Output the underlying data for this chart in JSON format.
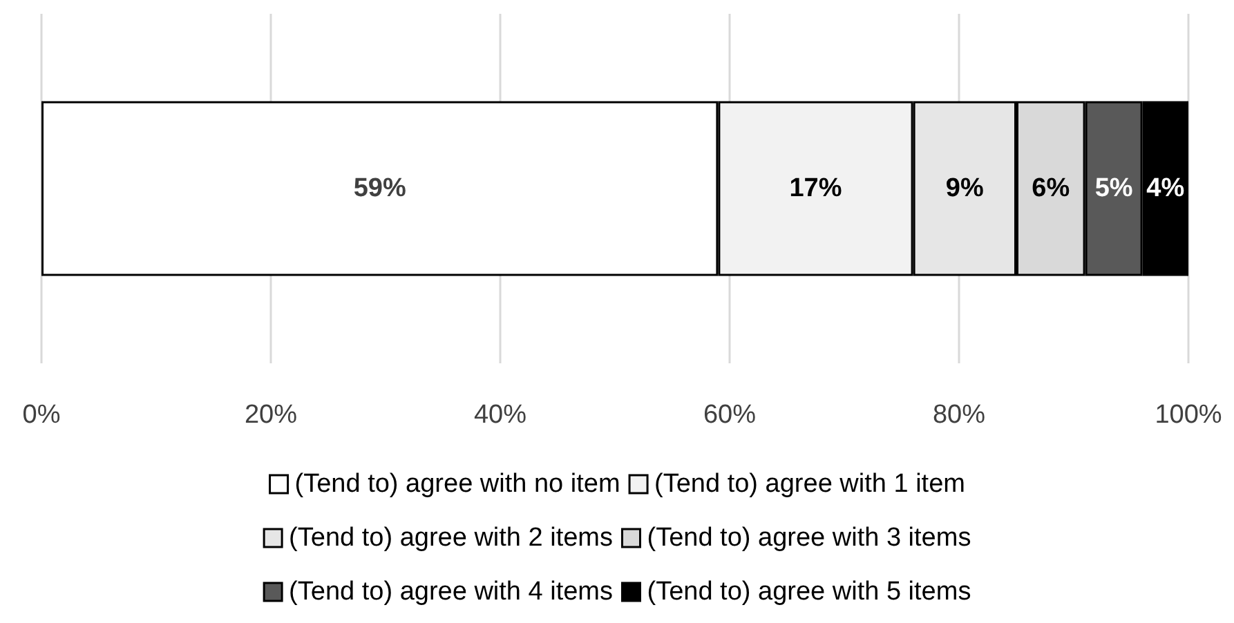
{
  "chart_data": {
    "type": "bar",
    "orientation": "horizontal",
    "stacked": true,
    "categories": [
      null
    ],
    "series": [
      {
        "name": "(Tend to) agree with no item",
        "color": "#ffffff",
        "values": [
          59
        ],
        "value_labels": [
          "59%"
        ]
      },
      {
        "name": "(Tend to) agree with 1 item",
        "color": "#f2f2f2",
        "values": [
          17
        ],
        "value_labels": [
          "17%"
        ]
      },
      {
        "name": "(Tend to) agree with 2 items",
        "color": "#e6e6e6",
        "values": [
          9
        ],
        "value_labels": [
          "9%"
        ]
      },
      {
        "name": "(Tend to) agree with 3 items",
        "color": "#d9d9d9",
        "values": [
          6
        ],
        "value_labels": [
          "6%"
        ]
      },
      {
        "name": "(Tend to) agree with 4 items",
        "color": "#595959",
        "values": [
          5
        ],
        "value_labels": [
          "5%"
        ]
      },
      {
        "name": "(Tend to) agree with 5 items",
        "color": "#000000",
        "values": [
          4
        ],
        "value_labels": [
          "4%"
        ]
      }
    ],
    "xlim": [
      0,
      100
    ],
    "xticks": [
      {
        "value": 0,
        "label": "0%"
      },
      {
        "value": 20,
        "label": "20%"
      },
      {
        "value": 40,
        "label": "40%"
      },
      {
        "value": 60,
        "label": "60%"
      },
      {
        "value": 80,
        "label": "80%"
      },
      {
        "value": 100,
        "label": "100%"
      }
    ],
    "grid": "x",
    "legend": "bottom"
  }
}
